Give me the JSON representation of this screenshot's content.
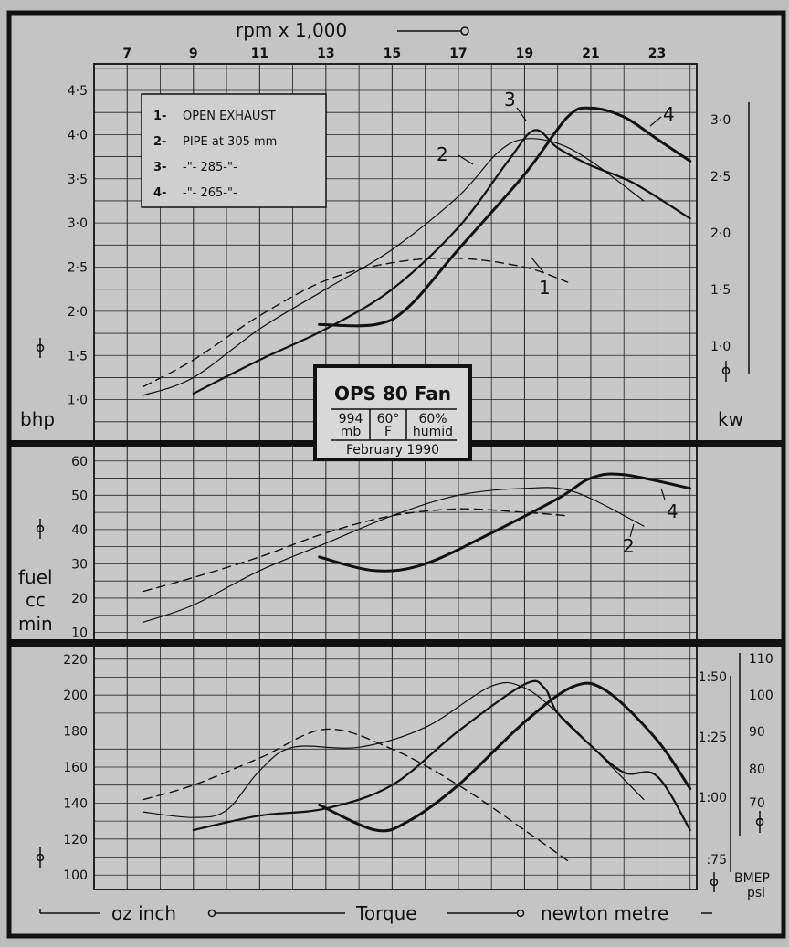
{
  "chart_data": {
    "type": "line",
    "title": "OPS 80 Fan",
    "conditions": {
      "pressure": "994",
      "pressure_unit": "mb",
      "temp": "60°",
      "temp_unit": "F",
      "humidity": "60%",
      "humidity_unit": "humid",
      "date": "February 1990"
    },
    "x_axis": {
      "label": "rpm x 1,000",
      "ticks": [
        "7",
        "9",
        "11",
        "13",
        "15",
        "17",
        "19",
        "21",
        "23"
      ],
      "range": [
        6,
        24.2
      ]
    },
    "legend": [
      {
        "key": "1-",
        "text": "OPEN EXHAUST"
      },
      {
        "key": "2-",
        "text": "PIPE at 305 mm"
      },
      {
        "key": "3-",
        "text": "-\"-      285-\"-"
      },
      {
        "key": "4-",
        "text": "-\"-      265-\"-"
      }
    ],
    "curve_labels": [
      "1",
      "2",
      "3",
      "4"
    ],
    "panels": [
      {
        "id": "power",
        "ylabel": "bhp",
        "y_ticks": [
          "1·0",
          "1·5",
          "2·0",
          "2·5",
          "3·0",
          "3·5",
          "4·0",
          "4·5"
        ],
        "ylim": [
          0.5,
          4.8
        ],
        "right_label": "kw",
        "right_ticks": [
          "1·0",
          "1·5",
          "2·0",
          "2·5",
          "3·0"
        ],
        "series": [
          {
            "name": "1",
            "style": "dashed",
            "points": [
              [
                7.5,
                1.15
              ],
              [
                9,
                1.45
              ],
              [
                11,
                1.95
              ],
              [
                13,
                2.35
              ],
              [
                15,
                2.55
              ],
              [
                17,
                2.6
              ],
              [
                19,
                2.5
              ],
              [
                20.3,
                2.33
              ]
            ]
          },
          {
            "name": "2",
            "style": "thin",
            "points": [
              [
                7.5,
                1.05
              ],
              [
                9,
                1.25
              ],
              [
                11,
                1.8
              ],
              [
                13,
                2.25
              ],
              [
                15,
                2.7
              ],
              [
                17,
                3.3
              ],
              [
                18.2,
                3.8
              ],
              [
                19,
                3.95
              ],
              [
                20,
                3.9
              ],
              [
                21,
                3.7
              ],
              [
                22.6,
                3.25
              ]
            ]
          },
          {
            "name": "3",
            "style": "medium",
            "points": [
              [
                9,
                1.07
              ],
              [
                11,
                1.45
              ],
              [
                13,
                1.8
              ],
              [
                15,
                2.25
              ],
              [
                17,
                2.95
              ],
              [
                18.5,
                3.7
              ],
              [
                19.3,
                4.05
              ],
              [
                20,
                3.85
              ],
              [
                21,
                3.65
              ],
              [
                22.3,
                3.45
              ],
              [
                24,
                3.05
              ]
            ]
          },
          {
            "name": "4",
            "style": "thick",
            "points": [
              [
                12.8,
                1.85
              ],
              [
                14.5,
                1.85
              ],
              [
                15.5,
                2.05
              ],
              [
                17,
                2.7
              ],
              [
                19,
                3.55
              ],
              [
                20.3,
                4.2
              ],
              [
                21,
                4.3
              ],
              [
                22,
                4.2
              ],
              [
                23,
                3.95
              ],
              [
                24,
                3.7
              ]
            ]
          }
        ]
      },
      {
        "id": "fuel",
        "ylabel": "fuel cc min",
        "y_ticks": [
          "10",
          "20",
          "30",
          "40",
          "50",
          "60"
        ],
        "ylim": [
          8,
          65
        ],
        "series": [
          {
            "name": "1",
            "style": "dashed",
            "points": [
              [
                7.5,
                22
              ],
              [
                9,
                26
              ],
              [
                11,
                32
              ],
              [
                13,
                39
              ],
              [
                15,
                44
              ],
              [
                17,
                46
              ],
              [
                19,
                45
              ],
              [
                20.3,
                44
              ]
            ]
          },
          {
            "name": "2",
            "style": "thin",
            "points": [
              [
                7.5,
                13
              ],
              [
                9,
                18
              ],
              [
                11,
                28
              ],
              [
                13,
                36
              ],
              [
                15,
                44
              ],
              [
                17,
                50
              ],
              [
                19,
                52
              ],
              [
                20.5,
                51
              ],
              [
                22.6,
                41
              ]
            ]
          },
          {
            "name": "4",
            "style": "thick",
            "points": [
              [
                12.8,
                32
              ],
              [
                14.5,
                28
              ],
              [
                16,
                30
              ],
              [
                18,
                39
              ],
              [
                20,
                49
              ],
              [
                21,
                55
              ],
              [
                22,
                56
              ],
              [
                24,
                52
              ]
            ]
          }
        ]
      },
      {
        "id": "torque",
        "ylabel": "oz inch",
        "y_ticks": [
          "100",
          "120",
          "140",
          "160",
          "180",
          "200",
          "220"
        ],
        "ylim": [
          92,
          228
        ],
        "right_ticks": [
          ":75",
          "1:00",
          "1:25",
          "1:50"
        ],
        "right_label": "BMEP psi",
        "right2_ticks": [
          "70",
          "80",
          "90",
          "100",
          "110"
        ],
        "bottom_caption": [
          "oz inch",
          "Torque",
          "newton metre"
        ],
        "series": [
          {
            "name": "1",
            "style": "dashed",
            "points": [
              [
                7.5,
                142
              ],
              [
                9,
                150
              ],
              [
                11,
                165
              ],
              [
                13,
                181
              ],
              [
                15,
                170
              ],
              [
                17,
                150
              ],
              [
                19,
                125
              ],
              [
                20.3,
                108
              ]
            ]
          },
          {
            "name": "2",
            "style": "thin",
            "points": [
              [
                7.5,
                135
              ],
              [
                9,
                132
              ],
              [
                10,
                136
              ],
              [
                11,
                158
              ],
              [
                12,
                171
              ],
              [
                14,
                171
              ],
              [
                16,
                182
              ],
              [
                18,
                205
              ],
              [
                19,
                204
              ],
              [
                20,
                190
              ],
              [
                21,
                172
              ],
              [
                22.6,
                142
              ]
            ]
          },
          {
            "name": "3",
            "style": "medium",
            "points": [
              [
                9,
                125
              ],
              [
                11,
                133
              ],
              [
                13,
                137
              ],
              [
                15,
                150
              ],
              [
                17,
                180
              ],
              [
                19,
                206
              ],
              [
                19.6,
                204
              ],
              [
                20,
                190
              ],
              [
                21,
                172
              ],
              [
                22,
                157
              ],
              [
                23,
                155
              ],
              [
                24,
                125
              ]
            ]
          },
          {
            "name": "4",
            "style": "thick",
            "points": [
              [
                12.8,
                139
              ],
              [
                14.5,
                125
              ],
              [
                15.5,
                130
              ],
              [
                17,
                150
              ],
              [
                19,
                185
              ],
              [
                20.5,
                205
              ],
              [
                21.5,
                202
              ],
              [
                23,
                175
              ],
              [
                24,
                148
              ]
            ]
          }
        ]
      }
    ]
  }
}
